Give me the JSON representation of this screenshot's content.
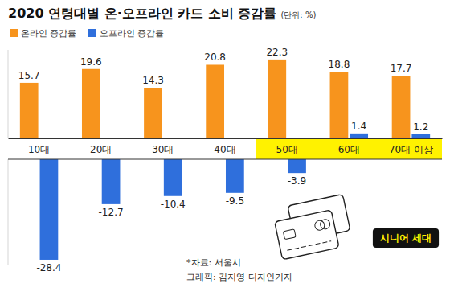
{
  "chart_data": {
    "type": "bar",
    "title": "2020 연령대별 온·오프라인 카드 소비 증감률",
    "subtitle": "(단위: %)",
    "categories": [
      "10대",
      "20대",
      "30대",
      "40대",
      "50대",
      "60대",
      "70대 이상"
    ],
    "series": [
      {
        "name": "온라인 증감률",
        "color": "#f7941d",
        "values": [
          15.7,
          19.6,
          14.3,
          20.8,
          22.3,
          18.8,
          17.7
        ]
      },
      {
        "name": "오프라인 증감률",
        "color": "#2f6fdc",
        "values": [
          -28.4,
          -12.7,
          -10.4,
          -9.5,
          -3.9,
          1.4,
          1.2
        ]
      }
    ],
    "ylim": [
      -30,
      25
    ],
    "data_labels": true,
    "tick_labels": "x",
    "legend": "top-left",
    "annotations": [
      "시니어 세대",
      "*자료: 서울시",
      "그래픽: 김지영 디자인기자"
    ]
  }
}
